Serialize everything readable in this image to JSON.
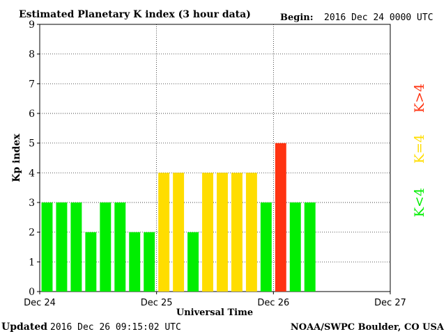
{
  "chart_data": {
    "type": "bar",
    "title": "Estimated Planetary K index (3 hour data)",
    "begin_label": "Begin:",
    "begin_value": "2016 Dec 24 0000 UTC",
    "xlabel": "Universal Time",
    "ylabel": "Kp index",
    "ylim": [
      0,
      9
    ],
    "yticks": [
      "0",
      "1",
      "2",
      "3",
      "4",
      "5",
      "6",
      "7",
      "8",
      "9"
    ],
    "xticks": [
      "Dec 24",
      "Dec 25",
      "Dec 26",
      "Dec 27"
    ],
    "slots": 24,
    "values": [
      3,
      3,
      3,
      2,
      3,
      3,
      2,
      2,
      4,
      4,
      2,
      4,
      4,
      4,
      4,
      3,
      5,
      3,
      3
    ],
    "legend": [
      {
        "label": "K<4",
        "color": "#00ee00"
      },
      {
        "label": "K=4",
        "color": "#ffdd00"
      },
      {
        "label": "K>4",
        "color": "#ff3311"
      }
    ],
    "colors": {
      "low": "#00ee00",
      "equal": "#ffdd00",
      "high": "#ff3311"
    },
    "grid": true
  },
  "footer": {
    "updated_label": "Updated",
    "updated_value": "2016 Dec 26 09:15:02 UTC",
    "source": "NOAA/SWPC Boulder, CO USA"
  }
}
